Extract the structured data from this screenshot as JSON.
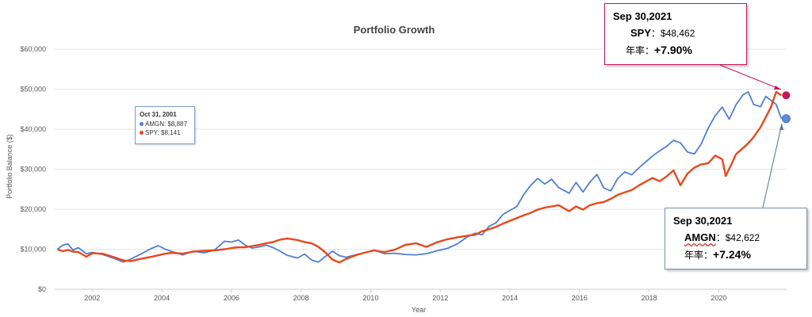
{
  "chart_data": {
    "type": "line",
    "title": "Portfolio Growth",
    "xlabel": "Year",
    "ylabel": "Portfolio Balance ($)",
    "xlim": [
      2000.9,
      2021.95
    ],
    "ylim": [
      0,
      60000
    ],
    "x_ticks": [
      "2002",
      "2004",
      "2006",
      "2008",
      "2010",
      "2012",
      "2014",
      "2016",
      "2018",
      "2020"
    ],
    "y_ticks": [
      "$0",
      "$10,000",
      "$20,000",
      "$30,000",
      "$40,000",
      "$50,000",
      "$60,000"
    ],
    "grid": true,
    "series": [
      {
        "name": "AMGN",
        "color": "#4f7fd1",
        "points": [
          [
            2001.0,
            10000
          ],
          [
            2001.15,
            11000
          ],
          [
            2001.3,
            11300
          ],
          [
            2001.45,
            9800
          ],
          [
            2001.6,
            10400
          ],
          [
            2001.83,
            8887
          ],
          [
            2002.0,
            9200
          ],
          [
            2002.3,
            8700
          ],
          [
            2002.6,
            7800
          ],
          [
            2002.9,
            6800
          ],
          [
            2003.1,
            7500
          ],
          [
            2003.4,
            8800
          ],
          [
            2003.7,
            10200
          ],
          [
            2003.9,
            10900
          ],
          [
            2004.1,
            10000
          ],
          [
            2004.3,
            9400
          ],
          [
            2004.6,
            8600
          ],
          [
            2004.9,
            9500
          ],
          [
            2005.2,
            9100
          ],
          [
            2005.5,
            9700
          ],
          [
            2005.8,
            12000
          ],
          [
            2006.0,
            11800
          ],
          [
            2006.2,
            12300
          ],
          [
            2006.4,
            11000
          ],
          [
            2006.6,
            10300
          ],
          [
            2006.8,
            10600
          ],
          [
            2007.0,
            11000
          ],
          [
            2007.2,
            10400
          ],
          [
            2007.4,
            9500
          ],
          [
            2007.6,
            8500
          ],
          [
            2007.9,
            7800
          ],
          [
            2008.1,
            8800
          ],
          [
            2008.3,
            7300
          ],
          [
            2008.5,
            6800
          ],
          [
            2008.7,
            8200
          ],
          [
            2008.9,
            9500
          ],
          [
            2009.1,
            8400
          ],
          [
            2009.3,
            8000
          ],
          [
            2009.6,
            8700
          ],
          [
            2009.9,
            9300
          ],
          [
            2010.1,
            9800
          ],
          [
            2010.4,
            8900
          ],
          [
            2010.7,
            9000
          ],
          [
            2011.0,
            8700
          ],
          [
            2011.3,
            8600
          ],
          [
            2011.6,
            8900
          ],
          [
            2011.9,
            9600
          ],
          [
            2012.2,
            10200
          ],
          [
            2012.5,
            11400
          ],
          [
            2012.8,
            13200
          ],
          [
            2013.0,
            14000
          ],
          [
            2013.2,
            13600
          ],
          [
            2013.4,
            15700
          ],
          [
            2013.6,
            16600
          ],
          [
            2013.8,
            18700
          ],
          [
            2014.0,
            19700
          ],
          [
            2014.2,
            20700
          ],
          [
            2014.4,
            23700
          ],
          [
            2014.6,
            26000
          ],
          [
            2014.8,
            27700
          ],
          [
            2015.0,
            26300
          ],
          [
            2015.2,
            27500
          ],
          [
            2015.4,
            25400
          ],
          [
            2015.7,
            24000
          ],
          [
            2015.9,
            26700
          ],
          [
            2016.1,
            24300
          ],
          [
            2016.3,
            26800
          ],
          [
            2016.5,
            28700
          ],
          [
            2016.7,
            25300
          ],
          [
            2016.9,
            24600
          ],
          [
            2017.1,
            27700
          ],
          [
            2017.3,
            29300
          ],
          [
            2017.5,
            28600
          ],
          [
            2017.7,
            30300
          ],
          [
            2017.9,
            31800
          ],
          [
            2018.1,
            33300
          ],
          [
            2018.3,
            34600
          ],
          [
            2018.5,
            35700
          ],
          [
            2018.7,
            37200
          ],
          [
            2018.9,
            36600
          ],
          [
            2019.1,
            34300
          ],
          [
            2019.3,
            33800
          ],
          [
            2019.5,
            36400
          ],
          [
            2019.7,
            40300
          ],
          [
            2019.9,
            43400
          ],
          [
            2020.1,
            45500
          ],
          [
            2020.3,
            42500
          ],
          [
            2020.5,
            46200
          ],
          [
            2020.7,
            48600
          ],
          [
            2020.85,
            49300
          ],
          [
            2021.0,
            46200
          ],
          [
            2021.2,
            45600
          ],
          [
            2021.35,
            48200
          ],
          [
            2021.5,
            47200
          ],
          [
            2021.65,
            46200
          ],
          [
            2021.8,
            42622
          ]
        ]
      },
      {
        "name": "SPY",
        "color": "#e8481c",
        "points": [
          [
            2001.0,
            10000
          ],
          [
            2001.15,
            9500
          ],
          [
            2001.3,
            9800
          ],
          [
            2001.45,
            9400
          ],
          [
            2001.6,
            9300
          ],
          [
            2001.83,
            8141
          ],
          [
            2002.0,
            9000
          ],
          [
            2002.3,
            8900
          ],
          [
            2002.6,
            8100
          ],
          [
            2002.9,
            7200
          ],
          [
            2003.1,
            7000
          ],
          [
            2003.4,
            7600
          ],
          [
            2003.7,
            8100
          ],
          [
            2003.9,
            8500
          ],
          [
            2004.1,
            8900
          ],
          [
            2004.3,
            9100
          ],
          [
            2004.6,
            8900
          ],
          [
            2004.9,
            9400
          ],
          [
            2005.2,
            9600
          ],
          [
            2005.5,
            9700
          ],
          [
            2005.8,
            10000
          ],
          [
            2006.0,
            10300
          ],
          [
            2006.2,
            10500
          ],
          [
            2006.4,
            10500
          ],
          [
            2006.6,
            10800
          ],
          [
            2006.8,
            11100
          ],
          [
            2007.0,
            11500
          ],
          [
            2007.2,
            11800
          ],
          [
            2007.4,
            12400
          ],
          [
            2007.6,
            12700
          ],
          [
            2007.9,
            12300
          ],
          [
            2008.1,
            11800
          ],
          [
            2008.3,
            11500
          ],
          [
            2008.5,
            10600
          ],
          [
            2008.7,
            9200
          ],
          [
            2008.9,
            7400
          ],
          [
            2009.1,
            6700
          ],
          [
            2009.3,
            7600
          ],
          [
            2009.6,
            8600
          ],
          [
            2009.9,
            9300
          ],
          [
            2010.1,
            9700
          ],
          [
            2010.4,
            9300
          ],
          [
            2010.7,
            9900
          ],
          [
            2011.0,
            11100
          ],
          [
            2011.3,
            11500
          ],
          [
            2011.6,
            10600
          ],
          [
            2011.9,
            11700
          ],
          [
            2012.2,
            12500
          ],
          [
            2012.5,
            13000
          ],
          [
            2012.8,
            13400
          ],
          [
            2013.0,
            13600
          ],
          [
            2013.2,
            14500
          ],
          [
            2013.4,
            15000
          ],
          [
            2013.6,
            15600
          ],
          [
            2013.8,
            16400
          ],
          [
            2014.0,
            17100
          ],
          [
            2014.2,
            17800
          ],
          [
            2014.4,
            18500
          ],
          [
            2014.6,
            19100
          ],
          [
            2014.8,
            19900
          ],
          [
            2015.0,
            20400
          ],
          [
            2015.2,
            20700
          ],
          [
            2015.4,
            21000
          ],
          [
            2015.7,
            19500
          ],
          [
            2015.9,
            20700
          ],
          [
            2016.1,
            19900
          ],
          [
            2016.3,
            21000
          ],
          [
            2016.5,
            21500
          ],
          [
            2016.7,
            21800
          ],
          [
            2016.9,
            22600
          ],
          [
            2017.1,
            23600
          ],
          [
            2017.3,
            24200
          ],
          [
            2017.5,
            24800
          ],
          [
            2017.7,
            25900
          ],
          [
            2017.9,
            26900
          ],
          [
            2018.1,
            27800
          ],
          [
            2018.3,
            27000
          ],
          [
            2018.5,
            28200
          ],
          [
            2018.7,
            29700
          ],
          [
            2018.9,
            26000
          ],
          [
            2019.1,
            28900
          ],
          [
            2019.3,
            30400
          ],
          [
            2019.5,
            31200
          ],
          [
            2019.7,
            31500
          ],
          [
            2019.9,
            33400
          ],
          [
            2020.1,
            32500
          ],
          [
            2020.2,
            28300
          ],
          [
            2020.35,
            31000
          ],
          [
            2020.5,
            33800
          ],
          [
            2020.7,
            35300
          ],
          [
            2020.85,
            36500
          ],
          [
            2021.0,
            38000
          ],
          [
            2021.2,
            40500
          ],
          [
            2021.35,
            43000
          ],
          [
            2021.5,
            45500
          ],
          [
            2021.65,
            49300
          ],
          [
            2021.8,
            48462
          ]
        ]
      }
    ]
  },
  "tooltip": {
    "date": "Oct 31, 2001",
    "rows": [
      {
        "label": "AMGN: $8,887",
        "color": "#4f7fd1"
      },
      {
        "label": "SPY: $8,141",
        "color": "#e8481c"
      }
    ]
  },
  "callouts": {
    "spy": {
      "date": "Sep 30,2021",
      "ticker": "SPY",
      "value": "：$48,462",
      "rate_label": "年率：",
      "rate": "+7.90%",
      "marker_color": "#c2185b"
    },
    "amgn": {
      "date": "Sep 30,2021",
      "ticker": "AMGN",
      "value": "：$42,622",
      "rate_label": "年率：",
      "rate": "+7.24%",
      "marker_color": "#5b8fd6"
    }
  }
}
